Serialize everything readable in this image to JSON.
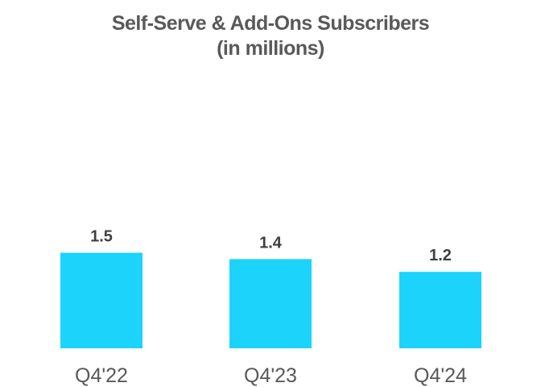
{
  "chart_data": {
    "type": "bar",
    "title": "Self-Serve & Add-Ons Subscribers",
    "subtitle": "(in millions)",
    "categories": [
      "Q4'22",
      "Q4'23",
      "Q4'24"
    ],
    "values": [
      1.5,
      1.4,
      1.2
    ],
    "data_labels": [
      "1.5",
      "1.4",
      "1.2"
    ],
    "xlabel": "",
    "ylabel": "",
    "ylim": [
      0,
      3.0
    ],
    "grid": false,
    "legend": "none",
    "colors": {
      "bar": "#1BD3FB",
      "title": "#595959",
      "labels": "#3F3F3F"
    }
  }
}
